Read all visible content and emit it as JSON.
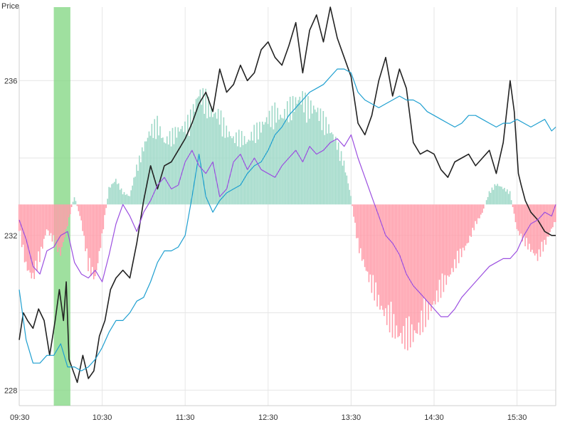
{
  "chart_data": {
    "type": "line",
    "ylabel": "Price",
    "x_ticks": [
      "09:30",
      "10:30",
      "11:30",
      "12:30",
      "13:30",
      "14:30",
      "15:30"
    ],
    "y_ticks": [
      228,
      232,
      236
    ],
    "ylim": [
      227.6,
      237.9
    ],
    "xlim": [
      "09:30",
      "15:58"
    ],
    "grid": true,
    "highlight_band": {
      "start": "09:55",
      "end": "10:07",
      "color": "#7fd67f"
    },
    "baseline": 232.8,
    "colors": {
      "price": "#222222",
      "average": "#1e9fd0",
      "signal": "#9b4fe0",
      "histogram_positive": "#9fd9c8",
      "histogram_negative": "#ff9eab"
    },
    "series": [
      {
        "key": "price",
        "x": [
          "09:30",
          "09:33",
          "09:36",
          "09:40",
          "09:44",
          "09:48",
          "09:52",
          "09:56",
          "09:59",
          "10:02",
          "10:04",
          "10:06",
          "10:08",
          "10:12",
          "10:16",
          "10:20",
          "10:24",
          "10:28",
          "10:32",
          "10:36",
          "10:40",
          "10:45",
          "10:50",
          "10:55",
          "11:00",
          "11:05",
          "11:10",
          "11:15",
          "11:20",
          "11:25",
          "11:30",
          "11:35",
          "11:40",
          "11:45",
          "11:50",
          "11:55",
          "12:00",
          "12:05",
          "12:10",
          "12:15",
          "12:20",
          "12:25",
          "12:30",
          "12:35",
          "12:40",
          "12:45",
          "12:50",
          "12:55",
          "13:00",
          "13:05",
          "13:10",
          "13:15",
          "13:20",
          "13:25",
          "13:30",
          "13:35",
          "13:40",
          "13:45",
          "13:50",
          "13:55",
          "14:00",
          "14:05",
          "14:10",
          "14:15",
          "14:20",
          "14:25",
          "14:30",
          "14:35",
          "14:40",
          "14:45",
          "14:50",
          "14:55",
          "15:00",
          "15:05",
          "15:10",
          "15:15",
          "15:20",
          "15:25",
          "15:28",
          "15:31",
          "15:33",
          "15:36",
          "15:40",
          "15:45",
          "15:50",
          "15:55",
          "15:58"
        ],
        "values": [
          229.3,
          230.0,
          229.8,
          229.6,
          230.1,
          229.8,
          228.9,
          229.8,
          230.6,
          229.8,
          230.8,
          228.8,
          228.6,
          228.2,
          228.9,
          228.3,
          228.5,
          229.4,
          229.8,
          230.6,
          230.9,
          231.1,
          230.9,
          231.8,
          232.9,
          233.8,
          233.2,
          233.8,
          233.9,
          234.2,
          234.5,
          234.9,
          235.4,
          235.7,
          235.2,
          236.3,
          235.7,
          235.9,
          236.4,
          236.0,
          236.2,
          236.8,
          237.0,
          236.6,
          236.4,
          236.9,
          237.5,
          236.2,
          237.3,
          237.7,
          237.0,
          237.9,
          237.1,
          236.6,
          236.1,
          234.9,
          234.6,
          235.1,
          236.0,
          236.6,
          235.6,
          236.3,
          235.8,
          234.4,
          234.1,
          234.2,
          234.1,
          233.7,
          233.5,
          233.9,
          234.0,
          234.1,
          233.8,
          234.0,
          234.2,
          233.6,
          234.4,
          236.0,
          235.2,
          233.6,
          233.3,
          232.9,
          232.6,
          232.4,
          232.1,
          232.0,
          232.0
        ]
      },
      {
        "key": "average",
        "x": [
          "09:30",
          "09:35",
          "09:40",
          "09:45",
          "09:50",
          "09:55",
          "10:00",
          "10:05",
          "10:10",
          "10:15",
          "10:20",
          "10:25",
          "10:30",
          "10:35",
          "10:40",
          "10:45",
          "10:50",
          "10:55",
          "11:00",
          "11:05",
          "11:10",
          "11:15",
          "11:20",
          "11:25",
          "11:30",
          "11:35",
          "11:40",
          "11:45",
          "11:50",
          "11:55",
          "12:00",
          "12:05",
          "12:10",
          "12:15",
          "12:20",
          "12:25",
          "12:30",
          "12:35",
          "12:40",
          "12:45",
          "12:50",
          "12:55",
          "13:00",
          "13:05",
          "13:10",
          "13:15",
          "13:20",
          "13:25",
          "13:30",
          "13:35",
          "13:40",
          "13:45",
          "13:50",
          "13:55",
          "14:00",
          "14:05",
          "14:10",
          "14:15",
          "14:20",
          "14:25",
          "14:30",
          "14:35",
          "14:40",
          "14:45",
          "14:50",
          "14:55",
          "15:00",
          "15:05",
          "15:10",
          "15:15",
          "15:20",
          "15:25",
          "15:30",
          "15:35",
          "15:40",
          "15:45",
          "15:50",
          "15:55",
          "15:58"
        ],
        "values": [
          230.6,
          229.3,
          228.7,
          228.7,
          228.9,
          228.9,
          229.2,
          228.6,
          228.6,
          228.5,
          228.6,
          228.8,
          229.1,
          229.5,
          229.8,
          229.8,
          230.0,
          230.3,
          230.4,
          230.8,
          231.3,
          231.6,
          231.6,
          231.7,
          232.0,
          233.0,
          234.1,
          233.0,
          232.6,
          232.9,
          233.1,
          233.2,
          233.3,
          233.6,
          233.8,
          233.9,
          234.2,
          234.6,
          234.8,
          235.1,
          235.3,
          235.5,
          235.7,
          235.8,
          235.9,
          236.1,
          236.3,
          236.3,
          236.2,
          235.7,
          235.5,
          235.4,
          235.3,
          235.4,
          235.5,
          235.6,
          235.5,
          235.5,
          235.4,
          235.2,
          235.1,
          235.0,
          234.9,
          234.8,
          234.9,
          235.1,
          235.1,
          235.0,
          234.9,
          234.8,
          234.9,
          234.9,
          235.0,
          234.9,
          234.8,
          234.9,
          235.0,
          234.7,
          234.8
        ]
      },
      {
        "key": "signal",
        "x": [
          "09:30",
          "09:35",
          "09:40",
          "09:45",
          "09:50",
          "09:55",
          "10:00",
          "10:05",
          "10:10",
          "10:15",
          "10:20",
          "10:25",
          "10:30",
          "10:35",
          "10:40",
          "10:45",
          "10:50",
          "10:55",
          "11:00",
          "11:05",
          "11:10",
          "11:15",
          "11:20",
          "11:25",
          "11:30",
          "11:35",
          "11:40",
          "11:45",
          "11:50",
          "11:55",
          "12:00",
          "12:05",
          "12:10",
          "12:15",
          "12:20",
          "12:25",
          "12:30",
          "12:35",
          "12:40",
          "12:45",
          "12:50",
          "12:55",
          "13:00",
          "13:05",
          "13:10",
          "13:15",
          "13:20",
          "13:25",
          "13:30",
          "13:35",
          "13:40",
          "13:45",
          "13:50",
          "13:55",
          "14:00",
          "14:05",
          "14:10",
          "14:15",
          "14:20",
          "14:25",
          "14:30",
          "14:35",
          "14:40",
          "14:45",
          "14:50",
          "14:55",
          "15:00",
          "15:05",
          "15:10",
          "15:15",
          "15:20",
          "15:25",
          "15:30",
          "15:35",
          "15:40",
          "15:45",
          "15:50",
          "15:55",
          "15:58"
        ],
        "values": [
          232.4,
          231.9,
          231.2,
          231.0,
          231.6,
          231.7,
          232.0,
          232.1,
          231.3,
          231.0,
          230.9,
          231.1,
          230.8,
          231.5,
          232.3,
          232.8,
          232.5,
          232.1,
          232.6,
          232.9,
          233.3,
          233.5,
          233.2,
          233.3,
          233.9,
          234.2,
          233.8,
          233.6,
          233.9,
          233.0,
          233.2,
          233.9,
          234.1,
          233.7,
          234.0,
          233.7,
          233.6,
          233.5,
          233.8,
          234.0,
          234.2,
          233.9,
          234.3,
          234.1,
          234.2,
          234.4,
          234.5,
          234.3,
          234.6,
          234.0,
          233.5,
          233.0,
          232.5,
          232.0,
          231.8,
          231.5,
          231.0,
          230.7,
          230.5,
          230.3,
          230.1,
          229.9,
          229.9,
          230.1,
          230.4,
          230.6,
          230.8,
          231.0,
          231.2,
          231.3,
          231.4,
          231.4,
          231.6,
          232.0,
          232.3,
          232.4,
          232.6,
          232.5,
          232.8
        ]
      }
    ],
    "histogram": {
      "x": [
        "09:30",
        "09:35",
        "09:40",
        "09:45",
        "09:50",
        "09:55",
        "10:00",
        "10:05",
        "10:10",
        "10:15",
        "10:20",
        "10:25",
        "10:30",
        "10:35",
        "10:40",
        "10:45",
        "10:50",
        "10:55",
        "11:00",
        "11:05",
        "11:10",
        "11:15",
        "11:20",
        "11:25",
        "11:30",
        "11:35",
        "11:40",
        "11:45",
        "11:50",
        "11:55",
        "12:00",
        "12:05",
        "12:10",
        "12:15",
        "12:20",
        "12:25",
        "12:30",
        "12:35",
        "12:40",
        "12:45",
        "12:50",
        "12:55",
        "13:00",
        "13:05",
        "13:10",
        "13:15",
        "13:20",
        "13:25",
        "13:30",
        "13:35",
        "13:40",
        "13:45",
        "13:50",
        "13:55",
        "14:00",
        "14:05",
        "14:10",
        "14:15",
        "14:20",
        "14:25",
        "14:30",
        "14:35",
        "14:40",
        "14:45",
        "14:50",
        "14:55",
        "15:00",
        "15:05",
        "15:10",
        "15:15",
        "15:20",
        "15:25",
        "15:30",
        "15:35",
        "15:40",
        "15:45",
        "15:50",
        "15:55",
        "15:58"
      ],
      "values": [
        -0.6,
        -1.5,
        -1.8,
        -1.3,
        -0.6,
        -0.9,
        -1.2,
        -0.5,
        0.2,
        -0.4,
        -1.5,
        -1.8,
        -0.8,
        0.4,
        0.6,
        0.3,
        0.2,
        0.9,
        1.4,
        1.8,
        2.0,
        1.5,
        1.7,
        1.8,
        1.9,
        2.2,
        2.7,
        2.6,
        2.2,
        2.2,
        1.8,
        1.6,
        1.7,
        1.5,
        1.8,
        1.9,
        2.1,
        2.3,
        2.1,
        2.4,
        2.5,
        2.6,
        2.4,
        2.3,
        2.1,
        1.8,
        1.5,
        1.0,
        0.2,
        -1.0,
        -1.5,
        -2.0,
        -2.4,
        -2.7,
        -3.0,
        -3.2,
        -3.3,
        -3.2,
        -3.0,
        -2.7,
        -2.4,
        -2.1,
        -1.8,
        -1.5,
        -1.2,
        -0.9,
        -0.5,
        -0.2,
        0.3,
        0.5,
        0.4,
        0.3,
        -0.6,
        -0.9,
        -1.1,
        -1.3,
        -1.0,
        -0.6,
        -0.4
      ]
    }
  }
}
